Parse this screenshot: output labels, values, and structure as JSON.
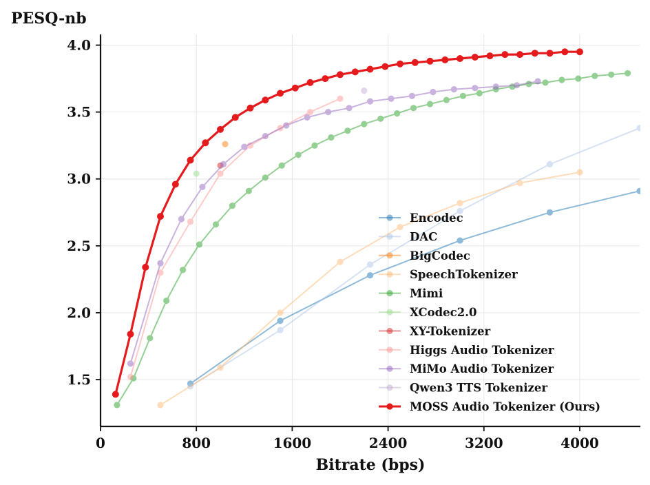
{
  "chart_data": {
    "type": "line",
    "title": "",
    "ylabel": "PESQ-nb",
    "xlabel": "Bitrate (bps)",
    "xlim": [
      0,
      4500
    ],
    "ylim": [
      1.15,
      4.08
    ],
    "xticks": [
      0,
      800,
      1600,
      2400,
      3200,
      4000
    ],
    "xtick_labels": [
      "0",
      "800",
      "1600",
      "2400",
      "3200",
      "4000"
    ],
    "yticks": [
      1.5,
      2.0,
      2.5,
      3.0,
      3.5,
      4.0
    ],
    "ytick_labels": [
      "1.5",
      "2.0",
      "2.5",
      "3.0",
      "3.5",
      "4.0"
    ],
    "grid": true,
    "legend_position": "lower-right",
    "series": [
      {
        "name": "Encodec",
        "color": "#1f77b4",
        "x": [
          750,
          1500,
          2250,
          3000,
          3750,
          4500
        ],
        "y": [
          1.47,
          1.94,
          2.28,
          2.54,
          2.75,
          2.91
        ]
      },
      {
        "name": "DAC",
        "color": "#aec7e8",
        "x": [
          750,
          1500,
          2250,
          3000,
          3750,
          4500
        ],
        "y": [
          1.45,
          1.87,
          2.36,
          2.76,
          3.11,
          3.38
        ]
      },
      {
        "name": "BigCodec",
        "color": "#ff7f0e",
        "x": [
          1040
        ],
        "y": [
          3.26
        ]
      },
      {
        "name": "SpeechTokenizer",
        "color": "#ffbb78",
        "x": [
          500,
          1000,
          1500,
          2000,
          2500,
          3000,
          3500,
          4000
        ],
        "y": [
          1.31,
          1.59,
          2.0,
          2.38,
          2.64,
          2.82,
          2.97,
          3.05
        ]
      },
      {
        "name": "Mimi",
        "color": "#2ca02c",
        "x": [
          137.5,
          275,
          412.5,
          550,
          687.5,
          825,
          962.5,
          1100,
          1237.5,
          1375,
          1512.5,
          1650,
          1787.5,
          1925,
          2062.5,
          2200,
          2337.5,
          2475,
          2612.5,
          2750,
          2887.5,
          3025,
          3162.5,
          3300,
          3437.5,
          3575,
          3712.5,
          3850,
          3987.5,
          4125,
          4262.5,
          4400
        ],
        "y": [
          1.31,
          1.51,
          1.81,
          2.09,
          2.32,
          2.51,
          2.66,
          2.8,
          2.91,
          3.01,
          3.1,
          3.18,
          3.25,
          3.31,
          3.36,
          3.41,
          3.45,
          3.49,
          3.53,
          3.56,
          3.59,
          3.62,
          3.64,
          3.67,
          3.69,
          3.71,
          3.72,
          3.74,
          3.75,
          3.77,
          3.78,
          3.79
        ]
      },
      {
        "name": "XCodec2.0",
        "color": "#98df8a",
        "x": [
          800
        ],
        "y": [
          3.04
        ]
      },
      {
        "name": "XY-Tokenizer",
        "color": "#d62728",
        "x": [
          1000
        ],
        "y": [
          3.1
        ]
      },
      {
        "name": "Higgs Audio Tokenizer",
        "color": "#ff9896",
        "x": [
          250,
          500,
          750,
          1000,
          1250,
          1500,
          1750,
          2000
        ],
        "y": [
          1.52,
          2.3,
          2.68,
          3.04,
          3.25,
          3.38,
          3.5,
          3.6
        ]
      },
      {
        "name": "MiMo Audio Tokenizer",
        "color": "#9467bd",
        "x": [
          250,
          500,
          675,
          850,
          1025,
          1200,
          1375,
          1550,
          1725,
          1900,
          2075,
          2250,
          2425,
          2600,
          2775,
          2950,
          3125,
          3300,
          3475,
          3650
        ],
        "y": [
          1.62,
          2.37,
          2.7,
          2.94,
          3.11,
          3.24,
          3.32,
          3.4,
          3.46,
          3.5,
          3.53,
          3.58,
          3.6,
          3.62,
          3.65,
          3.67,
          3.68,
          3.69,
          3.7,
          3.73
        ]
      },
      {
        "name": "Qwen3 TTS Tokenizer",
        "color": "#c5b0d5",
        "x": [
          2200
        ],
        "y": [
          3.66
        ]
      },
      {
        "name": "MOSS Audio Tokenizer (Ours)",
        "color": "#e41a1c",
        "x": [
          125,
          250,
          375,
          500,
          625,
          750,
          875,
          1000,
          1125,
          1250,
          1375,
          1500,
          1625,
          1750,
          1875,
          2000,
          2125,
          2250,
          2375,
          2500,
          2625,
          2750,
          2875,
          3000,
          3125,
          3250,
          3375,
          3500,
          3625,
          3750,
          3875,
          4000
        ],
        "y": [
          1.39,
          1.84,
          2.34,
          2.72,
          2.96,
          3.14,
          3.27,
          3.37,
          3.46,
          3.53,
          3.59,
          3.64,
          3.68,
          3.72,
          3.75,
          3.78,
          3.8,
          3.82,
          3.84,
          3.86,
          3.87,
          3.88,
          3.89,
          3.9,
          3.91,
          3.92,
          3.93,
          3.93,
          3.94,
          3.94,
          3.95,
          3.95
        ]
      }
    ]
  }
}
